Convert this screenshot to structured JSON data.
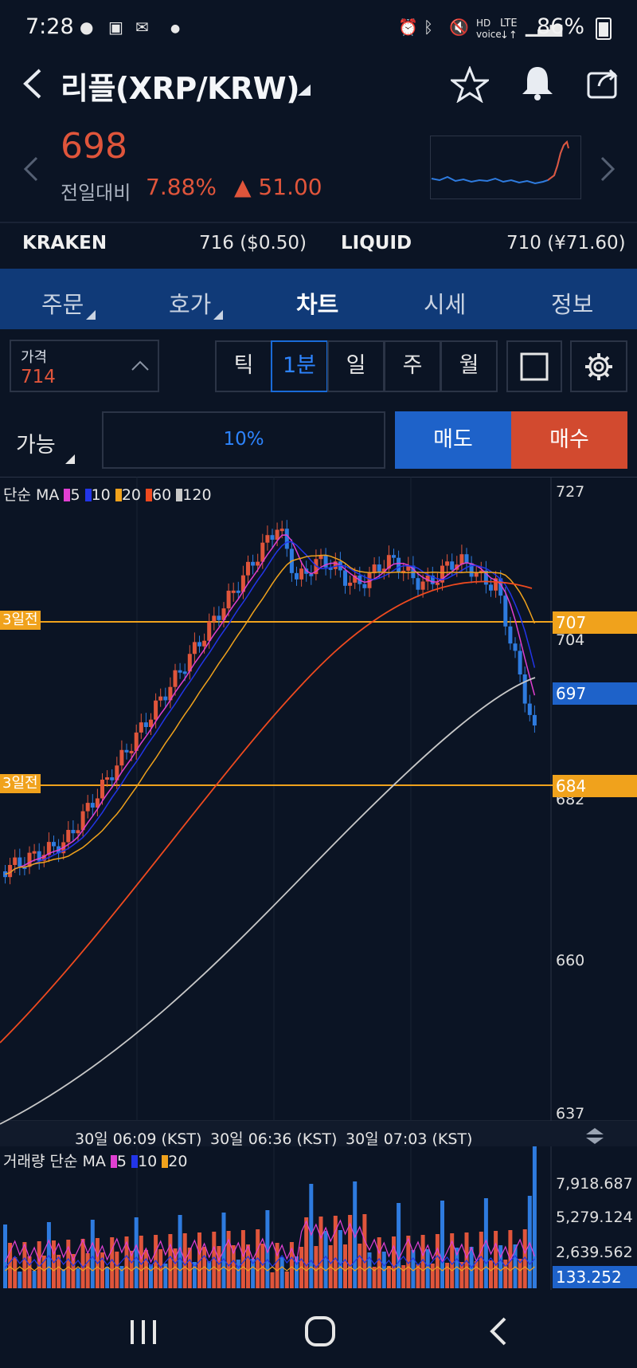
{
  "status_bar": {
    "time": "7:28",
    "battery": "86%"
  },
  "header": {
    "title": "리플(XRP/KRW)",
    "price": "698",
    "change_label": "전일대비",
    "change_pct": "7.88%",
    "change_abs": "▲ 51.00"
  },
  "exchanges": [
    {
      "name": "KRAKEN",
      "value": "716 ($0.50)"
    },
    {
      "name": "LIQUID",
      "value": "710 (¥71.60)"
    }
  ],
  "tabs": [
    {
      "label": "주문",
      "has_menu": true
    },
    {
      "label": "호가",
      "has_menu": true
    },
    {
      "label": "차트",
      "active": true
    },
    {
      "label": "시세"
    },
    {
      "label": "정보"
    }
  ],
  "price_box": {
    "label": "가격",
    "value": "714"
  },
  "periods": [
    "틱",
    "1분",
    "일",
    "주",
    "월"
  ],
  "active_period": "1분",
  "order": {
    "mode_label": "가능",
    "ratio": "10%",
    "sell_label": "매도",
    "buy_label": "매수"
  },
  "colors": {
    "up": "#e0553b",
    "down": "#2e7bdf",
    "ma5": "#e03fd2",
    "ma10": "#2235e8",
    "ma20": "#f0a21c",
    "ma60": "#ef4a1f",
    "ma120": "#c8c8c8",
    "tab_bg": "#103a78"
  },
  "chart_data": {
    "type": "candlestick",
    "ma_legend": {
      "prefix": "단순 MA",
      "periods": [
        "5",
        "10",
        "20",
        "60",
        "120"
      ]
    },
    "y_ticks": [
      "727",
      "704",
      "682",
      "660",
      "637"
    ],
    "y_range": [
      637,
      727
    ],
    "ref_lines": [
      {
        "label": "3일전",
        "value": "707"
      },
      {
        "label": "3일전",
        "value": "684"
      }
    ],
    "current_tag": "697",
    "x_labels": [
      "30일 06:09 (KST)",
      "30일 06:36 (KST)",
      "30일 07:03 (KST)"
    ],
    "volume": {
      "legend": {
        "prefix": "거래량 단순 MA",
        "periods": [
          "5",
          "10",
          "20"
        ]
      },
      "y_ticks": [
        "7,918.687",
        "5,279.124",
        "2,639.562"
      ],
      "current_tag": "133.252"
    }
  }
}
